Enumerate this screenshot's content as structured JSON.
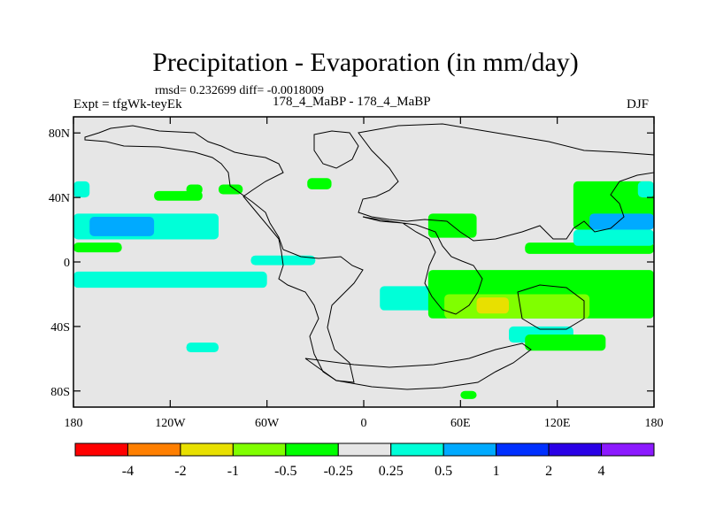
{
  "title": "Precipitation - Evaporation (in mm/day)",
  "subtitle_stats": "rmsd= 0.232699 diff= -0.0018009",
  "experiment": "Expt = tfgWk-teyEk",
  "runs": "178_4_MaBP - 178_4_MaBP",
  "season": "DJF",
  "chart_data": {
    "type": "heatmap",
    "title": "Precipitation - Evaporation (in mm/day)",
    "xlabel": "",
    "ylabel": "",
    "xlim": [
      -180,
      180
    ],
    "ylim": [
      -90,
      90
    ],
    "x_ticks": [
      {
        "value": -180,
        "label": "180"
      },
      {
        "value": -120,
        "label": "120W"
      },
      {
        "value": -60,
        "label": "60W"
      },
      {
        "value": 0,
        "label": "0"
      },
      {
        "value": 60,
        "label": "60E"
      },
      {
        "value": 120,
        "label": "120E"
      },
      {
        "value": 180,
        "label": "180"
      }
    ],
    "y_ticks": [
      {
        "value": 80,
        "label": "80N"
      },
      {
        "value": 40,
        "label": "40N"
      },
      {
        "value": 0,
        "label": "0"
      },
      {
        "value": -40,
        "label": "40S"
      },
      {
        "value": -80,
        "label": "80S"
      }
    ],
    "colorbar": {
      "labels": [
        "-4",
        "-2",
        "-1",
        "-0.5",
        "-0.25",
        "0.25",
        "0.5",
        "1",
        "2",
        "4"
      ],
      "colors": [
        "#ff0000",
        "#ff7f00",
        "#e8e000",
        "#80ff00",
        "#00ff00",
        "#e6e6e6",
        "#00ffd8",
        "#00aaff",
        "#0030ff",
        "#2a00e6",
        "#8c1aff"
      ]
    },
    "background_color": "#e6e6e6",
    "regions": [
      {
        "level": "0.25-0.5",
        "lon": [
          -180,
          -170
        ],
        "lat": [
          40,
          50
        ]
      },
      {
        "level": "0.25-0.5",
        "lon": [
          -180,
          -90
        ],
        "lat": [
          14,
          30
        ]
      },
      {
        "level": "0.5-1",
        "lon": [
          -170,
          -130
        ],
        "lat": [
          16,
          28
        ]
      },
      {
        "level": "-0.5--0.25",
        "lon": [
          -180,
          -150
        ],
        "lat": [
          6,
          12
        ]
      },
      {
        "level": "-0.5--0.25",
        "lon": [
          -130,
          -100
        ],
        "lat": [
          38,
          44
        ]
      },
      {
        "level": "-0.5--0.25",
        "lon": [
          -110,
          -100
        ],
        "lat": [
          42,
          48
        ]
      },
      {
        "level": "0.25-0.5",
        "lon": [
          -180,
          -60
        ],
        "lat": [
          -6,
          -16
        ]
      },
      {
        "level": "0.25-0.5",
        "lon": [
          -110,
          -90
        ],
        "lat": [
          -50,
          -56
        ]
      },
      {
        "level": "-0.5--0.25",
        "lon": [
          -90,
          -75
        ],
        "lat": [
          42,
          48
        ]
      },
      {
        "level": "-0.5--0.25",
        "lon": [
          -35,
          -20
        ],
        "lat": [
          45,
          52
        ]
      },
      {
        "level": "0.25-0.5",
        "lon": [
          -70,
          -30
        ],
        "lat": [
          -2,
          4
        ]
      },
      {
        "level": "0.25-0.5",
        "lon": [
          10,
          90
        ],
        "lat": [
          -15,
          -30
        ]
      },
      {
        "level": "-0.5--0.25",
        "lon": [
          40,
          180
        ],
        "lat": [
          -5,
          -35
        ]
      },
      {
        "level": "-1--0.5",
        "lon": [
          50,
          140
        ],
        "lat": [
          -20,
          -35
        ]
      },
      {
        "level": "-2--1",
        "lon": [
          70,
          90
        ],
        "lat": [
          -22,
          -32
        ]
      },
      {
        "level": "-0.5--0.25",
        "lon": [
          40,
          70
        ],
        "lat": [
          15,
          30
        ]
      },
      {
        "level": "0.25-0.5",
        "lon": [
          90,
          130
        ],
        "lat": [
          -40,
          -50
        ]
      },
      {
        "level": "-0.5--0.25",
        "lon": [
          130,
          180
        ],
        "lat": [
          20,
          50
        ]
      },
      {
        "level": "0.5-1",
        "lon": [
          140,
          180
        ],
        "lat": [
          20,
          30
        ]
      },
      {
        "level": "-0.5--0.25",
        "lon": [
          100,
          180
        ],
        "lat": [
          5,
          12
        ]
      },
      {
        "level": "0.25-0.5",
        "lon": [
          130,
          180
        ],
        "lat": [
          10,
          20
        ]
      },
      {
        "level": "0.25-0.5",
        "lon": [
          170,
          180
        ],
        "lat": [
          40,
          50
        ]
      },
      {
        "level": "-0.5--0.25",
        "lon": [
          100,
          150
        ],
        "lat": [
          -45,
          -55
        ]
      },
      {
        "level": "-0.5--0.25",
        "lon": [
          60,
          70
        ],
        "lat": [
          -80,
          -85
        ]
      }
    ]
  }
}
